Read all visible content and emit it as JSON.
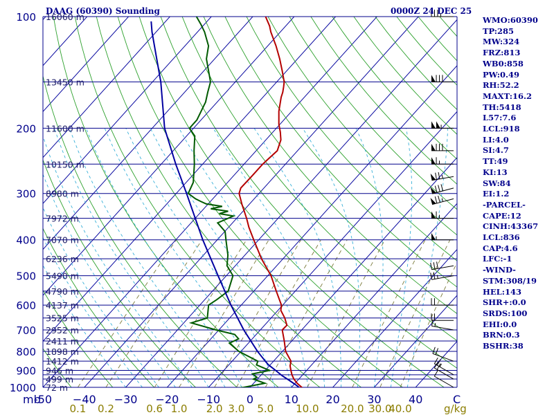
{
  "chart_data": {
    "type": "line",
    "title": "DAAG (60390) Sounding",
    "time_label": "0000Z 24 DEC 25",
    "x_axis_unit_label": "mb",
    "x_ticks": [
      -50,
      -40,
      -30,
      -20,
      -10,
      0,
      10,
      20,
      30,
      40
    ],
    "x_tick_labels": [
      "-50",
      "−40",
      "−30",
      "−20",
      "−10",
      "0",
      "10",
      "20",
      "30",
      "40"
    ],
    "x_unit_label": "C",
    "mixing_ratio_unit": "g/kg",
    "mixing_ratio_values": [
      0.1,
      0.2,
      0.6,
      1.0,
      2.0,
      3.0,
      5.0,
      10.0,
      20.0,
      30.0,
      40.0
    ],
    "mixing_ratio_labels": [
      "0.1",
      "0.2",
      "0.6",
      "1.0",
      "2.0",
      "3.0",
      "5.0",
      "10.0",
      "20.0",
      "30.0",
      "40.0"
    ],
    "pressure_ticks": [
      "100",
      "200",
      "300",
      "400",
      "500",
      "600",
      "700",
      "800",
      "900",
      "1000"
    ],
    "pressure_tick_values": [
      100,
      200,
      300,
      400,
      500,
      600,
      700,
      800,
      900,
      1000
    ],
    "isobars": [
      100,
      150,
      200,
      250,
      300,
      350,
      400,
      450,
      500,
      550,
      600,
      650,
      700,
      750,
      800,
      850,
      900,
      925,
      950,
      1000
    ],
    "height_levels": [
      {
        "p": 100,
        "label": "16060 m"
      },
      {
        "p": 150,
        "label": "13450 m"
      },
      {
        "p": 200,
        "label": "11600 m"
      },
      {
        "p": 250,
        "label": "10150 m"
      },
      {
        "p": 300,
        "label": "8980 m"
      },
      {
        "p": 350,
        "label": "7972 m"
      },
      {
        "p": 400,
        "label": "7070 m"
      },
      {
        "p": 450,
        "label": "6236 m"
      },
      {
        "p": 500,
        "label": "5490 m"
      },
      {
        "p": 550,
        "label": "4790 m"
      },
      {
        "p": 600,
        "label": "4137 m"
      },
      {
        "p": 650,
        "label": "3525 m"
      },
      {
        "p": 700,
        "label": "2952 m"
      },
      {
        "p": 750,
        "label": "2411 m"
      },
      {
        "p": 800,
        "label": "1898 m"
      },
      {
        "p": 850,
        "label": "1412 m"
      },
      {
        "p": 900,
        "label": "946 m"
      },
      {
        "p": 950,
        "label": "499 m"
      },
      {
        "p": 1000,
        "label": "72 m"
      }
    ],
    "series": [
      {
        "name": "temperature",
        "color": "#b40000",
        "points": [
          [
            1012,
            12.8
          ],
          [
            1000,
            12.5
          ],
          [
            975,
            10.5
          ],
          [
            950,
            8.8
          ],
          [
            925,
            7.4
          ],
          [
            900,
            6.2
          ],
          [
            875,
            5.0
          ],
          [
            850,
            4.2
          ],
          [
            800,
            0.8
          ],
          [
            750,
            -1.8
          ],
          [
            700,
            -4.7
          ],
          [
            680,
            -4.6
          ],
          [
            650,
            -6.7
          ],
          [
            620,
            -9.3
          ],
          [
            600,
            -10.3
          ],
          [
            550,
            -14.6
          ],
          [
            500,
            -19.2
          ],
          [
            450,
            -25.2
          ],
          [
            400,
            -31.2
          ],
          [
            370,
            -35.1
          ],
          [
            350,
            -37.6
          ],
          [
            320,
            -41.9
          ],
          [
            300,
            -44.8
          ],
          [
            290,
            -45.6
          ],
          [
            270,
            -45.5
          ],
          [
            250,
            -45.5
          ],
          [
            230,
            -44.9
          ],
          [
            215,
            -46.4
          ],
          [
            205,
            -48.2
          ],
          [
            195,
            -50.3
          ],
          [
            180,
            -53.1
          ],
          [
            165,
            -55.6
          ],
          [
            160,
            -56.3
          ],
          [
            155,
            -57.2
          ],
          [
            150,
            -58.2
          ],
          [
            140,
            -61.1
          ],
          [
            130,
            -64.3
          ],
          [
            120,
            -68.0
          ],
          [
            110,
            -72.3
          ],
          [
            106,
            -73.9
          ],
          [
            100,
            -76.9
          ]
        ]
      },
      {
        "name": "dewpoint",
        "color": "#005a00",
        "points": [
          [
            1012,
            -5.5
          ],
          [
            1000,
            -1.5
          ],
          [
            975,
            2.7
          ],
          [
            950,
            -1.0
          ],
          [
            940,
            -0.5
          ],
          [
            920,
            -2.3
          ],
          [
            900,
            1.0
          ],
          [
            870,
            -3.3
          ],
          [
            850,
            -3.8
          ],
          [
            800,
            -10.5
          ],
          [
            760,
            -14.6
          ],
          [
            740,
            -13.3
          ],
          [
            720,
            -15.2
          ],
          [
            700,
            -20.7
          ],
          [
            670,
            -28.2
          ],
          [
            650,
            -25.4
          ],
          [
            600,
            -27.9
          ],
          [
            580,
            -27.1
          ],
          [
            550,
            -26.2
          ],
          [
            500,
            -28.4
          ],
          [
            470,
            -32.0
          ],
          [
            440,
            -34.1
          ],
          [
            400,
            -37.9
          ],
          [
            380,
            -39.9
          ],
          [
            360,
            -43.6
          ],
          [
            345,
            -41.3
          ],
          [
            340,
            -45.2
          ],
          [
            335,
            -43.6
          ],
          [
            330,
            -48.3
          ],
          [
            325,
            -46.1
          ],
          [
            320,
            -50.5
          ],
          [
            315,
            -52.4
          ],
          [
            310,
            -54.2
          ],
          [
            300,
            -57.1
          ],
          [
            280,
            -58.3
          ],
          [
            250,
            -62.0
          ],
          [
            230,
            -65.0
          ],
          [
            210,
            -68.0
          ],
          [
            200,
            -71.0
          ],
          [
            190,
            -71.0
          ],
          [
            170,
            -72.8
          ],
          [
            160,
            -74.4
          ],
          [
            150,
            -76.0
          ],
          [
            130,
            -82.0
          ],
          [
            120,
            -84.3
          ],
          [
            110,
            -88.3
          ],
          [
            105,
            -90.8
          ],
          [
            100,
            -93.6
          ]
        ]
      },
      {
        "name": "parcel",
        "color": "#0000a0",
        "points": [
          [
            1012,
            12.8
          ],
          [
            990,
            11.0
          ],
          [
            960,
            8.2
          ],
          [
            930,
            5.2
          ],
          [
            900,
            2.5
          ],
          [
            870,
            -0.4
          ],
          [
            850,
            -2.0
          ],
          [
            800,
            -6.0
          ],
          [
            700,
            -14.0
          ],
          [
            600,
            -22.5
          ],
          [
            500,
            -32.0
          ],
          [
            400,
            -43.5
          ],
          [
            300,
            -57.5
          ],
          [
            250,
            -66.5
          ],
          [
            200,
            -77.0
          ],
          [
            150,
            -88.0
          ],
          [
            130,
            -94.0
          ],
          [
            110,
            -101.0
          ],
          [
            103,
            -103.5
          ]
        ]
      }
    ],
    "wind_barbs": [
      {
        "p": 100,
        "dir": 270,
        "spd_kt": 35
      },
      {
        "p": 150,
        "dir": 270,
        "spd_kt": 80
      },
      {
        "p": 200,
        "dir": 270,
        "spd_kt": 105
      },
      {
        "p": 230,
        "dir": 270,
        "spd_kt": 80
      },
      {
        "p": 250,
        "dir": 270,
        "spd_kt": 65
      },
      {
        "p": 270,
        "dir": 260,
        "spd_kt": 75
      },
      {
        "p": 290,
        "dir": 255,
        "spd_kt": 80
      },
      {
        "p": 310,
        "dir": 255,
        "spd_kt": 75
      },
      {
        "p": 350,
        "dir": 270,
        "spd_kt": 65
      },
      {
        "p": 400,
        "dir": 270,
        "spd_kt": 55
      },
      {
        "p": 470,
        "dir": 260,
        "spd_kt": 30
      },
      {
        "p": 500,
        "dir": 260,
        "spd_kt": 25
      },
      {
        "p": 600,
        "dir": 270,
        "spd_kt": 20
      },
      {
        "p": 660,
        "dir": 270,
        "spd_kt": 20
      },
      {
        "p": 700,
        "dir": 280,
        "spd_kt": 15
      },
      {
        "p": 850,
        "dir": 290,
        "spd_kt": 20
      },
      {
        "p": 925,
        "dir": 300,
        "spd_kt": 25
      },
      {
        "p": 950,
        "dir": 300,
        "spd_kt": 20
      },
      {
        "p": 1000,
        "dir": 300,
        "spd_kt": 10
      }
    ]
  },
  "indices": [
    "WMO:60390",
    "TP:285",
    "MW:324",
    "FRZ:813",
    "WB0:858",
    "PW:0.49",
    "RH:52.2",
    "MAXT:16.2",
    "TH:5418",
    "L57:7.6",
    "LCL:918",
    "LI:4.0",
    "SI:4.7",
    "TT:49",
    "KI:13",
    "SW:84",
    "EI:1.2",
    "-PARCEL-",
    "CAPE:12",
    "CINH:43367",
    "LCL:836",
    "CAP:4.6",
    "LFC:-1",
    "-WIND-",
    "STM:308/19",
    "HEL:143",
    "SHR+:0.0",
    "SRDS:100",
    "EHI:0.0",
    "BRN:0.3",
    "BSHR:38"
  ],
  "colors": {
    "background": "#ffffff",
    "isobar": "#00008b",
    "isotherm": "#0a0aa0",
    "dry_adiabat": "#2ca02c",
    "moist_adiabat": "#38b0d8",
    "mixing_ratio": "#7a7a3a",
    "text": "#00008b",
    "mixing_ratio_text": "#8b7d00"
  }
}
